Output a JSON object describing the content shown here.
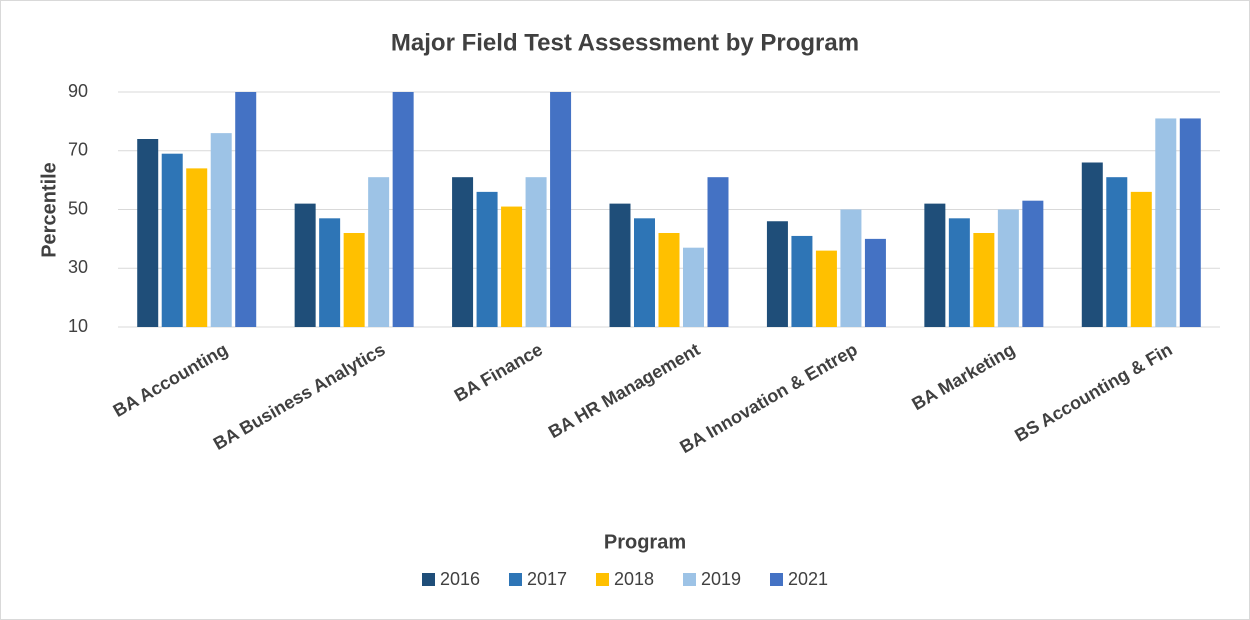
{
  "chart_data": {
    "type": "bar",
    "title": "Major Field Test Assessment by Program",
    "x_label": "Program",
    "y_label": "Percentile",
    "categories": [
      "BA Accounting",
      "BA Business Analytics",
      "BA Finance",
      "BA HR Management",
      "BA Innovation & Entrep",
      "BA Marketing",
      "BS Accounting & Fin"
    ],
    "series": [
      {
        "name": "2016",
        "color": "#1f4e79",
        "values": [
          74,
          52,
          61,
          52,
          46,
          52,
          66
        ]
      },
      {
        "name": "2017",
        "color": "#2e75b6",
        "values": [
          69,
          47,
          56,
          47,
          41,
          47,
          61
        ]
      },
      {
        "name": "2018",
        "color": "#ffc000",
        "values": [
          64,
          42,
          51,
          42,
          36,
          42,
          56
        ]
      },
      {
        "name": "2019",
        "color": "#9dc3e6",
        "values": [
          76,
          61,
          61,
          37,
          50,
          50,
          81
        ]
      },
      {
        "name": "2021",
        "color": "#4472c4",
        "values": [
          90,
          90,
          90,
          61,
          40,
          53,
          81
        ]
      }
    ],
    "ylim": [
      10,
      90
    ],
    "yticks": [
      10,
      30,
      50,
      70,
      90
    ],
    "grid": true,
    "legend": "bottom"
  }
}
